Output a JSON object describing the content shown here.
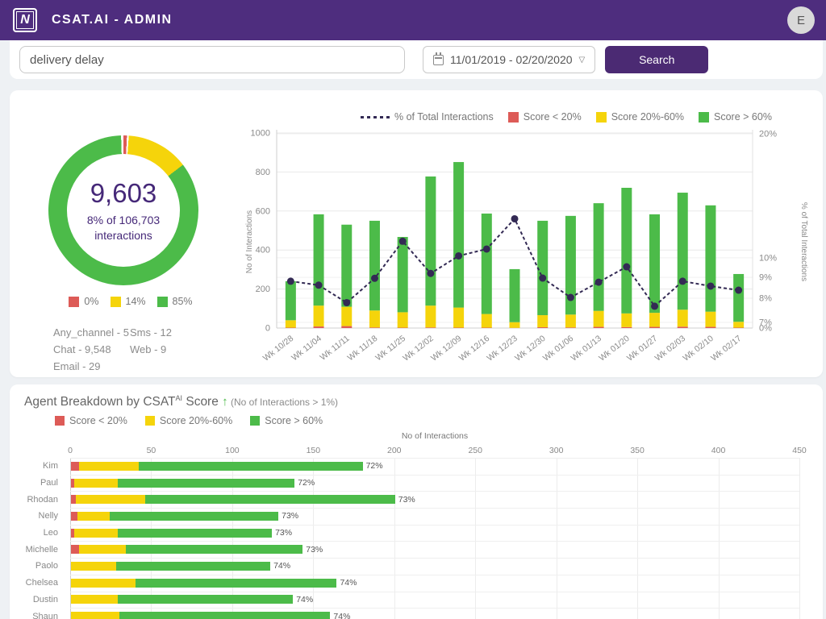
{
  "header": {
    "logo_letter": "N",
    "title": "CSAT.AI - ADMIN",
    "avatar_initial": "E"
  },
  "search": {
    "query": "delivery delay",
    "date_range": "11/01/2019 - 02/20/2020",
    "caret": "▽",
    "button_label": "Search"
  },
  "colors": {
    "header_purple": "#4e2d7e",
    "button_purple": "#4b2a73",
    "text_purple": "#452878",
    "red": "#dd5b57",
    "yellow": "#f5d40b",
    "green": "#4cbb49",
    "line": "#332a54"
  },
  "summary": {
    "total": "9,603",
    "subtitle_line1": "8% of 106,703",
    "subtitle_line2": "interactions",
    "donut_ring": [
      {
        "color": "#dd5b57",
        "pct": 0.75
      },
      {
        "color": "#ffffff",
        "pct": 0.4
      },
      {
        "color": "#f5d40b",
        "pct": 13.45
      },
      {
        "color": "#4cbb49",
        "pct": 84.9
      },
      {
        "color": "#ffffff",
        "pct": 0.5
      }
    ],
    "donut_legend": [
      {
        "label": "0%",
        "color": "#dd5b57"
      },
      {
        "label": "14%",
        "color": "#f5d40b"
      },
      {
        "label": "85%",
        "color": "#4cbb49"
      }
    ],
    "channels": [
      "Any_channel - 5",
      "Chat - 9,548",
      "Email - 29",
      "Sms - 12",
      "Web - 9"
    ]
  },
  "agent_section": {
    "title_main": "Agent Breakdown by CSAT",
    "title_sup": "AI",
    "title_score": " Score ",
    "arrow": "↑",
    "title_note": " (No of Interactions > 1%)"
  },
  "chart_data": [
    {
      "type": "bar",
      "subtype": "stacked-column-with-line",
      "legend": {
        "line_label": "% of Total Interactions",
        "items": [
          {
            "label": "Score < 20%",
            "color": "#dd5b57"
          },
          {
            "label": "Score 20%-60%",
            "color": "#f5d40b"
          },
          {
            "label": "Score > 60%",
            "color": "#4cbb49"
          }
        ]
      },
      "ylabel": "No of Interactions",
      "ylabel_right": "% of Total Interactions",
      "ylim": [
        0,
        1000
      ],
      "left_ticks": [
        0,
        200,
        400,
        600,
        800,
        1000
      ],
      "right_ticks": [
        {
          "label": "20%",
          "pos": 996
        },
        {
          "label": "10%",
          "pos": 360
        },
        {
          "label": "9%",
          "pos": 260
        },
        {
          "label": "8%",
          "pos": 153
        },
        {
          "label": "7%",
          "pos": 29
        },
        {
          "label": "0%",
          "pos": 0
        }
      ],
      "categories": [
        "Wk 10/28",
        "Wk 11/04",
        "Wk 11/11",
        "Wk 11/18",
        "Wk 11/25",
        "Wk 12/02",
        "Wk 12/09",
        "Wk 12/16",
        "Wk 12/23",
        "Wk 12/30",
        "Wk 01/06",
        "Wk 01/13",
        "Wk 01/20",
        "Wk 01/27",
        "Wk 02/03",
        "Wk 02/10",
        "Wk 02/17"
      ],
      "series": [
        {
          "name": "Score < 20%",
          "color": "#dd5b57",
          "values": [
            2,
            8,
            10,
            3,
            2,
            3,
            2,
            2,
            1,
            4,
            3,
            6,
            5,
            6,
            7,
            6,
            2
          ]
        },
        {
          "name": "Score 20%-60%",
          "color": "#f5d40b",
          "values": [
            38,
            107,
            99,
            87,
            79,
            112,
            103,
            70,
            29,
            62,
            66,
            82,
            70,
            72,
            87,
            78,
            30
          ]
        },
        {
          "name": "Score > 60%",
          "color": "#4cbb49",
          "values": [
            200,
            468,
            421,
            460,
            386,
            662,
            746,
            515,
            272,
            484,
            506,
            552,
            644,
            505,
            600,
            545,
            245
          ]
        }
      ],
      "line": {
        "name": "% of Total Interactions",
        "color": "#332a54",
        "positions_left_scale": [
          240,
          220,
          130,
          255,
          445,
          280,
          370,
          405,
          560,
          256,
          157,
          235,
          314,
          112,
          240,
          215,
          194
        ],
        "approx_pct": [
          "8.9%",
          "8.7%",
          "7.8%",
          "9.0%",
          "11.3%",
          "9.2%",
          "10.2%",
          "10.7%",
          "13.1%",
          "9.0%",
          "8.0%",
          "8.8%",
          "9.5%",
          "7.7%",
          "8.9%",
          "8.6%",
          "8.4%"
        ]
      }
    },
    {
      "type": "bar",
      "subtype": "horizontal-stacked",
      "legend": {
        "items": [
          {
            "label": "Score < 20%",
            "color": "#dd5b57"
          },
          {
            "label": "Score 20%-60%",
            "color": "#f5d40b"
          },
          {
            "label": "Score > 60%",
            "color": "#4cbb49"
          }
        ]
      },
      "xlabel": "No of Interactions",
      "xlim": [
        0,
        450
      ],
      "x_ticks": [
        0,
        50,
        100,
        150,
        200,
        250,
        300,
        350,
        400,
        450
      ],
      "categories": [
        "Kim",
        "Paul",
        "Rhodan",
        "Nelly",
        "Leo",
        "Michelle",
        "Paolo",
        "Chelsea",
        "Dustin",
        "Shaun"
      ],
      "series": [
        {
          "name": "Score < 20%",
          "color": "#dd5b57",
          "values": [
            5,
            2,
            3,
            4,
            2,
            5,
            0,
            0,
            0,
            0
          ]
        },
        {
          "name": "Score 20%-60%",
          "color": "#f5d40b",
          "values": [
            37,
            27,
            43,
            20,
            27,
            29,
            28,
            40,
            29,
            30
          ]
        },
        {
          "name": "Score > 60%",
          "color": "#4cbb49",
          "values": [
            138,
            109,
            154,
            104,
            95,
            109,
            95,
            124,
            108,
            130
          ]
        }
      ],
      "bar_labels": [
        "72%",
        "72%",
        "73%",
        "73%",
        "73%",
        "73%",
        "74%",
        "74%",
        "74%",
        "74%"
      ]
    }
  ]
}
